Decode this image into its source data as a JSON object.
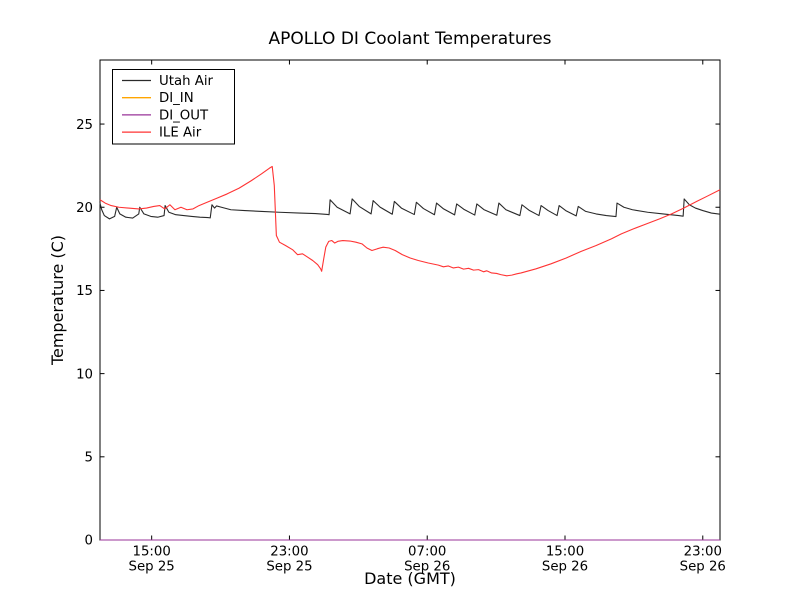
{
  "chart_data": {
    "type": "line",
    "title": "APOLLO DI Coolant Temperatures",
    "xlabel": "Date (GMT)",
    "ylabel": "Temperature (C)",
    "x_unit": "hours since Sep 25 00:00 GMT",
    "xlim": [
      12,
      48
    ],
    "ylim": [
      0,
      28.85
    ],
    "grid": false,
    "legend_position": "upper left",
    "axis_color": "#000000",
    "yticks": [
      0,
      5,
      10,
      15,
      20,
      25
    ],
    "xticks": [
      {
        "value": 15,
        "line1": "15:00",
        "line2": "Sep 25"
      },
      {
        "value": 23,
        "line1": "23:00",
        "line2": "Sep 25"
      },
      {
        "value": 31,
        "line1": "07:00",
        "line2": "Sep 26"
      },
      {
        "value": 39,
        "line1": "15:00",
        "line2": "Sep 26"
      },
      {
        "value": 47,
        "line1": "23:00",
        "line2": "Sep 26"
      }
    ],
    "series": [
      {
        "name": "Utah Air",
        "color": "#2a2a2a",
        "points": [
          [
            12.0,
            20.25
          ],
          [
            12.1,
            19.85
          ],
          [
            12.25,
            19.5
          ],
          [
            12.55,
            19.3
          ],
          [
            12.85,
            19.45
          ],
          [
            12.97,
            20.0
          ],
          [
            13.15,
            19.6
          ],
          [
            13.5,
            19.4
          ],
          [
            13.9,
            19.35
          ],
          [
            14.25,
            19.6
          ],
          [
            14.31,
            20.0
          ],
          [
            14.55,
            19.6
          ],
          [
            14.95,
            19.45
          ],
          [
            15.35,
            19.4
          ],
          [
            15.72,
            19.5
          ],
          [
            15.78,
            20.1
          ],
          [
            16.0,
            19.7
          ],
          [
            16.4,
            19.55
          ],
          [
            16.86,
            19.5
          ],
          [
            17.33,
            19.45
          ],
          [
            17.8,
            19.4
          ],
          [
            18.26,
            19.38
          ],
          [
            18.4,
            19.36
          ],
          [
            18.5,
            20.15
          ],
          [
            18.65,
            19.95
          ],
          [
            18.77,
            20.08
          ],
          [
            19.05,
            20.0
          ],
          [
            19.6,
            19.85
          ],
          [
            20.4,
            19.8
          ],
          [
            21.4,
            19.75
          ],
          [
            22.4,
            19.7
          ],
          [
            23.6,
            19.65
          ],
          [
            24.5,
            19.62
          ],
          [
            25.2,
            19.57
          ],
          [
            25.3,
            19.55
          ],
          [
            25.36,
            20.45
          ],
          [
            25.77,
            20.0
          ],
          [
            26.52,
            19.6
          ],
          [
            26.64,
            20.5
          ],
          [
            27.05,
            20.05
          ],
          [
            27.74,
            19.6
          ],
          [
            27.86,
            20.4
          ],
          [
            28.27,
            20.0
          ],
          [
            28.97,
            19.58
          ],
          [
            29.09,
            20.35
          ],
          [
            29.5,
            19.95
          ],
          [
            30.25,
            19.56
          ],
          [
            30.37,
            20.3
          ],
          [
            30.78,
            19.92
          ],
          [
            31.42,
            19.55
          ],
          [
            31.54,
            20.25
          ],
          [
            31.95,
            19.9
          ],
          [
            32.59,
            19.54
          ],
          [
            32.71,
            20.2
          ],
          [
            33.12,
            19.88
          ],
          [
            33.76,
            19.53
          ],
          [
            33.88,
            20.2
          ],
          [
            34.29,
            19.86
          ],
          [
            35.04,
            19.52
          ],
          [
            35.16,
            20.25
          ],
          [
            35.57,
            19.85
          ],
          [
            36.38,
            19.5
          ],
          [
            36.5,
            20.15
          ],
          [
            36.91,
            19.82
          ],
          [
            37.49,
            19.5
          ],
          [
            37.61,
            20.1
          ],
          [
            38.02,
            19.8
          ],
          [
            38.54,
            19.5
          ],
          [
            38.66,
            20.1
          ],
          [
            39.07,
            19.78
          ],
          [
            39.65,
            19.48
          ],
          [
            39.77,
            20.05
          ],
          [
            40.2,
            19.75
          ],
          [
            40.8,
            19.6
          ],
          [
            41.4,
            19.5
          ],
          [
            41.96,
            19.44
          ],
          [
            42.02,
            20.25
          ],
          [
            42.42,
            20.0
          ],
          [
            42.92,
            19.85
          ],
          [
            43.8,
            19.7
          ],
          [
            44.7,
            19.6
          ],
          [
            45.6,
            19.5
          ],
          [
            45.86,
            19.46
          ],
          [
            45.92,
            20.5
          ],
          [
            46.22,
            20.15
          ],
          [
            46.57,
            19.95
          ],
          [
            47.0,
            19.8
          ],
          [
            47.5,
            19.65
          ],
          [
            48.0,
            19.58
          ]
        ]
      },
      {
        "name": "DI_IN",
        "color": "#ffa500",
        "points": [
          [
            12,
            0
          ],
          [
            48,
            0
          ]
        ]
      },
      {
        "name": "DI_OUT",
        "color": "#993399",
        "points": [
          [
            12,
            0
          ],
          [
            48,
            0
          ]
        ]
      },
      {
        "name": "ILE Air",
        "color": "#ff3333",
        "points": [
          [
            12.0,
            20.45
          ],
          [
            12.3,
            20.25
          ],
          [
            12.65,
            20.1
          ],
          [
            13.1,
            20.0
          ],
          [
            13.65,
            19.95
          ],
          [
            14.25,
            19.9
          ],
          [
            14.7,
            19.95
          ],
          [
            15.12,
            20.05
          ],
          [
            15.47,
            20.1
          ],
          [
            15.76,
            19.9
          ],
          [
            16.06,
            20.15
          ],
          [
            16.35,
            19.85
          ],
          [
            16.7,
            20.0
          ],
          [
            17.05,
            19.85
          ],
          [
            17.4,
            19.9
          ],
          [
            17.75,
            20.1
          ],
          [
            18.22,
            20.3
          ],
          [
            18.8,
            20.55
          ],
          [
            19.38,
            20.8
          ],
          [
            20.08,
            21.15
          ],
          [
            20.79,
            21.6
          ],
          [
            21.37,
            22.0
          ],
          [
            21.84,
            22.35
          ],
          [
            22.0,
            22.45
          ],
          [
            22.12,
            21.3
          ],
          [
            22.24,
            18.3
          ],
          [
            22.42,
            17.9
          ],
          [
            22.77,
            17.7
          ],
          [
            23.18,
            17.45
          ],
          [
            23.47,
            17.15
          ],
          [
            23.76,
            17.2
          ],
          [
            24.06,
            17.0
          ],
          [
            24.35,
            16.8
          ],
          [
            24.64,
            16.55
          ],
          [
            24.81,
            16.3
          ],
          [
            24.87,
            16.15
          ],
          [
            24.99,
            16.9
          ],
          [
            25.11,
            17.6
          ],
          [
            25.28,
            17.95
          ],
          [
            25.46,
            18.0
          ],
          [
            25.63,
            17.85
          ],
          [
            25.81,
            17.95
          ],
          [
            26.1,
            18.0
          ],
          [
            26.51,
            17.97
          ],
          [
            26.86,
            17.9
          ],
          [
            27.21,
            17.8
          ],
          [
            27.5,
            17.55
          ],
          [
            27.79,
            17.4
          ],
          [
            28.09,
            17.5
          ],
          [
            28.44,
            17.6
          ],
          [
            28.79,
            17.55
          ],
          [
            29.14,
            17.4
          ],
          [
            29.55,
            17.15
          ],
          [
            30.01,
            16.95
          ],
          [
            30.48,
            16.8
          ],
          [
            31.06,
            16.65
          ],
          [
            31.65,
            16.52
          ],
          [
            31.94,
            16.42
          ],
          [
            32.23,
            16.47
          ],
          [
            32.52,
            16.35
          ],
          [
            32.81,
            16.4
          ],
          [
            33.11,
            16.28
          ],
          [
            33.4,
            16.33
          ],
          [
            33.69,
            16.22
          ],
          [
            33.98,
            16.25
          ],
          [
            34.27,
            16.12
          ],
          [
            34.45,
            16.18
          ],
          [
            34.74,
            16.05
          ],
          [
            35.03,
            16.02
          ],
          [
            35.27,
            15.95
          ],
          [
            35.62,
            15.88
          ],
          [
            35.91,
            15.92
          ],
          [
            36.2,
            16.0
          ],
          [
            36.45,
            16.05
          ],
          [
            37.32,
            16.3
          ],
          [
            38.19,
            16.6
          ],
          [
            39.07,
            16.95
          ],
          [
            39.94,
            17.35
          ],
          [
            40.81,
            17.7
          ],
          [
            41.69,
            18.1
          ],
          [
            42.27,
            18.4
          ],
          [
            42.97,
            18.7
          ],
          [
            43.73,
            19.0
          ],
          [
            44.49,
            19.3
          ],
          [
            45.19,
            19.6
          ],
          [
            45.89,
            19.95
          ],
          [
            46.65,
            20.35
          ],
          [
            47.23,
            20.65
          ],
          [
            48.0,
            21.05
          ]
        ]
      }
    ]
  }
}
